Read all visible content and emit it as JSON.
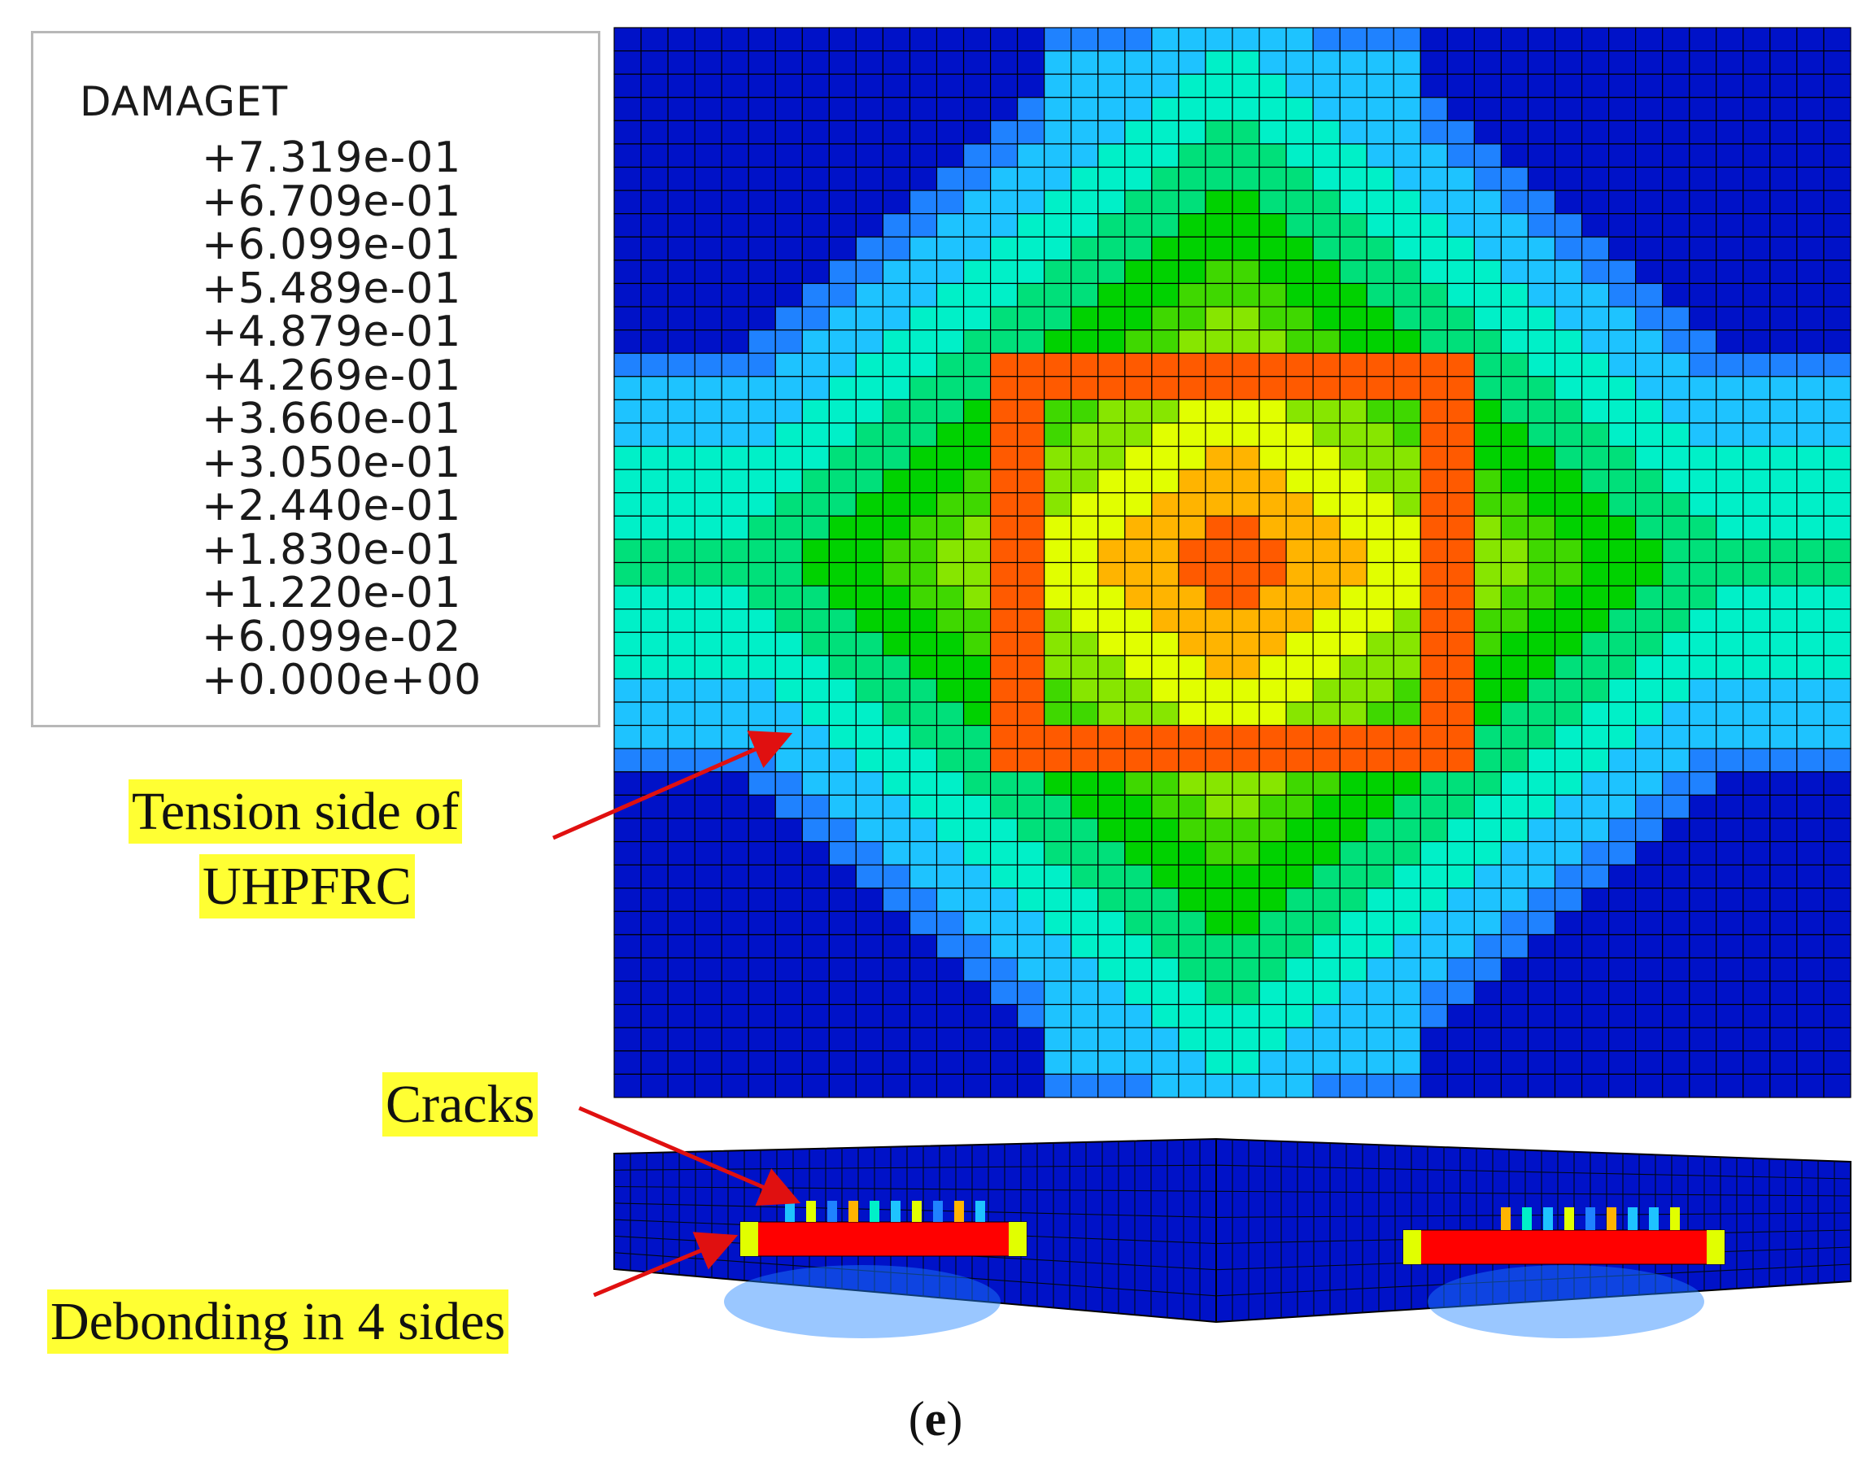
{
  "legend": {
    "title": "DAMAGET",
    "labels": [
      "+7.319e-01",
      "+6.709e-01",
      "+6.099e-01",
      "+5.489e-01",
      "+4.879e-01",
      "+4.269e-01",
      "+3.660e-01",
      "+3.050e-01",
      "+2.440e-01",
      "+1.830e-01",
      "+1.220e-01",
      "+6.099e-02",
      "+0.000e+00"
    ],
    "colors": [
      "#ff0000",
      "#ff5a00",
      "#ffb400",
      "#e1ff00",
      "#87e600",
      "#3fd800",
      "#00d200",
      "#00e07a",
      "#00f0c8",
      "#1ec3ff",
      "#1f82ff",
      "#0030ff"
    ]
  },
  "annotations": {
    "tension_line1": "Tension side of",
    "tension_line2": "UHPFRC",
    "cracks": "Cracks",
    "debonding": "Debonding in 4 sides"
  },
  "caption": {
    "open": "(",
    "letter": "e",
    "close": ")"
  },
  "colors": {
    "annotation_highlight": "#ffff33",
    "arrow": "#e01010",
    "mesh_line": "#000000",
    "undamaged": "#0012c8"
  }
}
